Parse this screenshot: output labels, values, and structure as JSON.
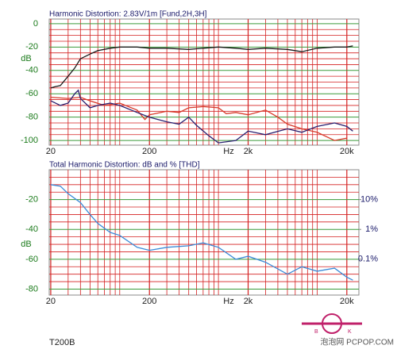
{
  "chart_data": [
    {
      "type": "line",
      "title": "Harmonic Distortion: 2.83V/1m [Fund,2H,3H]",
      "ylabel": "dB",
      "xlabel": "Hz",
      "xlog": true,
      "xlim": [
        19.3,
        26500
      ],
      "ylim": [
        -104,
        4
      ],
      "xticks": [
        20,
        200,
        {
          "value": 2000,
          "label": "2k"
        },
        {
          "value": 20000,
          "label": "20k"
        }
      ],
      "xminor": [
        30,
        40,
        50,
        60,
        70,
        80,
        90,
        100,
        300,
        400,
        500,
        600,
        700,
        800,
        900,
        1000,
        3000,
        4000,
        5000,
        6000,
        7000,
        8000,
        9000,
        10000
      ],
      "yticks": [
        0,
        -20,
        -40,
        -60,
        -80,
        -100
      ],
      "yminor": [
        -5,
        -10,
        -15,
        -25,
        -30,
        -35,
        -45,
        -50,
        -55,
        -65,
        -70,
        -75,
        -85,
        -90,
        -95
      ],
      "grid": true,
      "grid_color": "#d42020",
      "major_grid_color": "#3a9a3a",
      "series": [
        {
          "color": "#1a1a1a",
          "x": [
            20,
            22,
            25,
            30,
            35,
            40,
            50,
            60,
            80,
            100,
            150,
            200,
            300,
            500,
            700,
            1000,
            1500,
            2000,
            3000,
            5000,
            7000,
            10000,
            15000,
            20000,
            23000
          ],
          "values": [
            -55,
            -54,
            -53,
            -45,
            -38,
            -30,
            -26,
            -23,
            -21,
            -20,
            -20,
            -21,
            -21,
            -22,
            -21,
            -20,
            -21,
            -22,
            -21,
            -22,
            -24,
            -21,
            -20,
            -20,
            -19
          ]
        },
        {
          "color": "#d83a2a",
          "x": [
            20,
            30,
            40,
            50,
            70,
            100,
            150,
            180,
            200,
            300,
            400,
            500,
            700,
            1000,
            1200,
            1500,
            2000,
            3000,
            4000,
            5000,
            7000,
            10000,
            15000,
            20000
          ],
          "values": [
            -63,
            -64,
            -63,
            -66,
            -70,
            -68,
            -74,
            -82,
            -78,
            -75,
            -76,
            -72,
            -71,
            -72,
            -77,
            -76,
            -78,
            -74,
            -80,
            -86,
            -90,
            -93,
            -100,
            -98
          ]
        },
        {
          "color": "#2a2070",
          "x": [
            20,
            25,
            30,
            35,
            38,
            40,
            50,
            60,
            80,
            100,
            150,
            200,
            300,
            400,
            500,
            600,
            800,
            1000,
            1500,
            2000,
            3000,
            5000,
            7000,
            10000,
            15000,
            20000,
            23000
          ],
          "values": [
            -66,
            -70,
            -68,
            -60,
            -57,
            -64,
            -72,
            -70,
            -68,
            -70,
            -76,
            -80,
            -84,
            -86,
            -80,
            -87,
            -96,
            -102,
            -100,
            -92,
            -95,
            -90,
            -93,
            -88,
            -85,
            -88,
            -92
          ]
        }
      ]
    },
    {
      "type": "line",
      "title": "Total Harmonic Distortion: dB and % [THD]",
      "ylabel": "dB",
      "xlabel": "Hz",
      "xlog": true,
      "xlim": [
        19.3,
        26500
      ],
      "ylim": [
        -84,
        0
      ],
      "xticks": [
        20,
        200,
        {
          "value": 2000,
          "label": "2k"
        },
        {
          "value": 20000,
          "label": "20k"
        }
      ],
      "xminor": [
        30,
        40,
        50,
        60,
        70,
        80,
        90,
        100,
        300,
        400,
        500,
        600,
        700,
        800,
        900,
        1000,
        3000,
        4000,
        5000,
        6000,
        7000,
        8000,
        9000,
        10000
      ],
      "yticks": [
        -20,
        -40,
        -60,
        -80
      ],
      "yminor": [
        -5,
        -10,
        -15,
        -25,
        -30,
        -35,
        -45,
        -50,
        -55,
        -65,
        -70,
        -75
      ],
      "y2log": true,
      "y2lim": [
        100,
        0.0063
      ],
      "y2ticks": [
        {
          "value": 10,
          "label": "10%"
        },
        {
          "value": 1,
          "label": "1%"
        },
        {
          "value": 0.1,
          "label": "0.1%"
        }
      ],
      "grid": true,
      "grid_color": "#d42020",
      "major_grid_color": "#3a9a3a",
      "series": [
        {
          "color": "#3a8ad8",
          "x": [
            20,
            25,
            30,
            40,
            50,
            60,
            80,
            100,
            150,
            200,
            300,
            500,
            700,
            1000,
            1500,
            2000,
            3000,
            5000,
            7000,
            10000,
            15000,
            20000,
            23000
          ],
          "values": [
            -10,
            -11,
            -16,
            -22,
            -30,
            -36,
            -42,
            -44,
            -52,
            -54,
            -52,
            -51,
            -49,
            -52,
            -60,
            -58,
            -62,
            -70,
            -65,
            -68,
            -66,
            -72,
            -74
          ]
        }
      ]
    }
  ],
  "footer": {
    "model": "T200B",
    "watermark": "泡泡网 PCPOP.COM"
  },
  "logo": {
    "left": "B",
    "right": "K"
  }
}
